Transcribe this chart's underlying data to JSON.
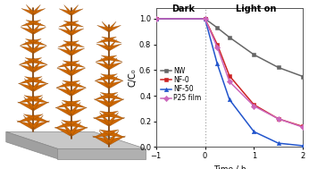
{
  "series": {
    "NW": {
      "x": [
        -1,
        0,
        0.25,
        0.5,
        1.0,
        1.5,
        2.0
      ],
      "y": [
        1.0,
        1.0,
        0.93,
        0.855,
        0.72,
        0.62,
        0.55
      ],
      "color": "#666666",
      "marker": "s",
      "label": "NW"
    },
    "NF-0": {
      "x": [
        -1,
        0,
        0.25,
        0.5,
        1.0,
        1.5,
        2.0
      ],
      "y": [
        1.0,
        1.0,
        0.8,
        0.555,
        0.33,
        0.22,
        0.16
      ],
      "color": "#cc2222",
      "marker": "s",
      "label": "NF-0"
    },
    "NF-50": {
      "x": [
        -1,
        0,
        0.25,
        0.5,
        1.0,
        1.5,
        2.0
      ],
      "y": [
        1.0,
        1.0,
        0.65,
        0.37,
        0.12,
        0.03,
        0.01
      ],
      "color": "#2255cc",
      "marker": "^",
      "label": "NF-50"
    },
    "P25 film": {
      "x": [
        -1,
        0,
        0.25,
        0.5,
        1.0,
        1.5,
        2.0
      ],
      "y": [
        1.0,
        1.0,
        0.78,
        0.51,
        0.32,
        0.22,
        0.155
      ],
      "color": "#cc66bb",
      "marker": "D",
      "label": "P25 film"
    }
  },
  "xlabel": "Time / h",
  "ylabel": "C/C₀",
  "xlim": [
    -1,
    2
  ],
  "ylim": [
    0.0,
    1.05
  ],
  "xticks": [
    -1,
    0,
    1,
    2
  ],
  "yticks": [
    0.0,
    0.2,
    0.4,
    0.6,
    0.8,
    1.0
  ],
  "dark_label": "Dark",
  "light_label": "Light on",
  "vline_x": 0,
  "bg_color": "#ffffff",
  "platform_top_color": "#c8c8c8",
  "platform_left_color": "#a0a0a0",
  "platform_right_color": "#b0b0b0",
  "spike_color": "#cc6600",
  "spine_color": "#7a3a00"
}
